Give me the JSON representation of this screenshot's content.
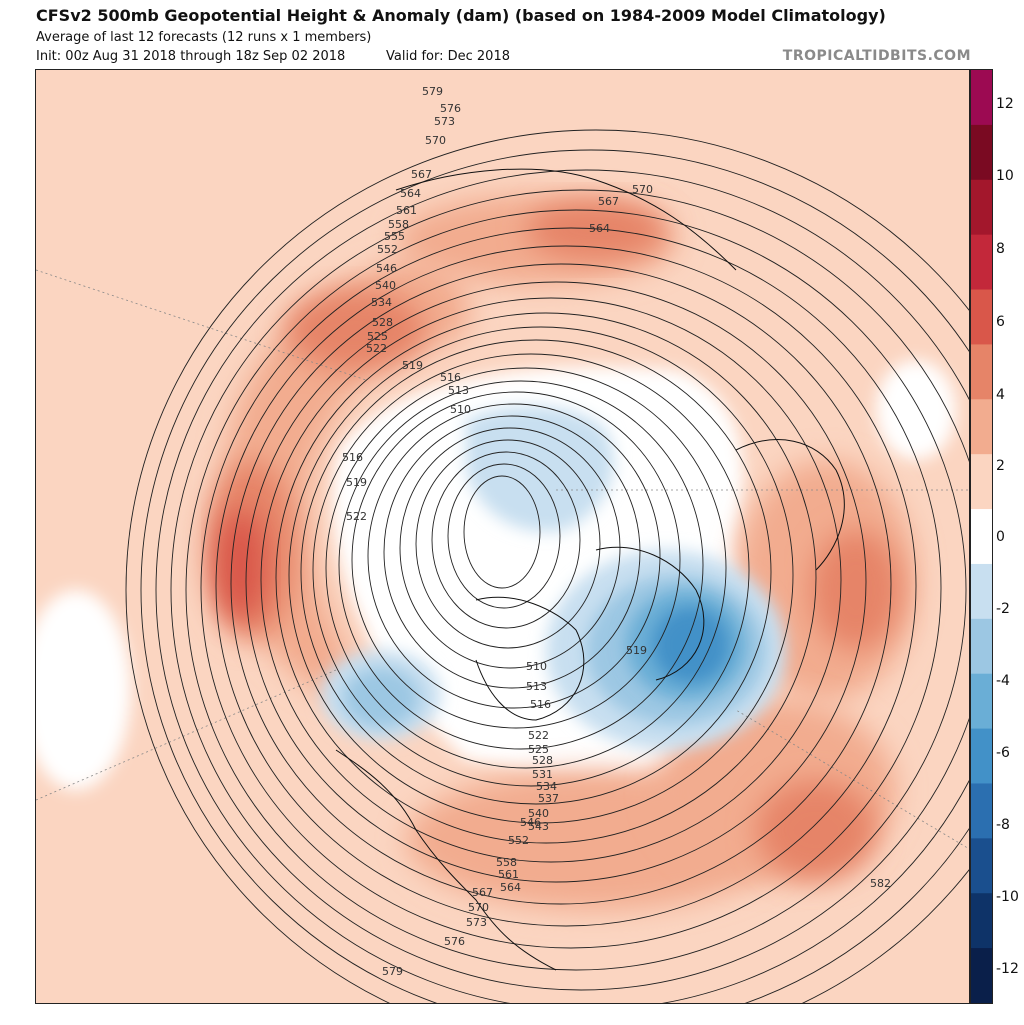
{
  "header": {
    "title": "CFSv2 500mb Geopotential Height & Anomaly (dam) (based on 1984-2009 Model Climatology)",
    "subtitle": "Average of last 12 forecasts (12 runs x 1 members)",
    "init": "Init: 00z Aug 31 2018 through 18z Sep 02 2018",
    "valid": "Valid for: Dec 2018",
    "brand": "TROPICALTIDBITS.COM"
  },
  "colorbar": {
    "ticks": [
      "12",
      "10",
      "8",
      "6",
      "4",
      "2",
      "0",
      "-2",
      "-4",
      "-6",
      "-8",
      "-10",
      "-12"
    ],
    "colors": [
      "#9c0a52",
      "#7a0a22",
      "#a3172c",
      "#c3283a",
      "#d9574a",
      "#e68468",
      "#f2ac8f",
      "#fbd5c1",
      "#ffffff",
      "#c8dff0",
      "#9cc7e3",
      "#6aaed6",
      "#4291c8",
      "#2b6fb0",
      "#1a4f8e",
      "#0e3368",
      "#0a1f4a"
    ]
  },
  "map": {
    "contour_labels": [
      "579",
      "576",
      "573",
      "570",
      "567",
      "564",
      "561",
      "558",
      "555",
      "552",
      "546",
      "540",
      "534",
      "528",
      "525",
      "522",
      "519",
      "516",
      "513",
      "510",
      "516",
      "519",
      "522",
      "582",
      "570",
      "567",
      "564",
      "519",
      "510",
      "513",
      "516",
      "522",
      "525",
      "528",
      "531",
      "534",
      "537",
      "540",
      "543",
      "546",
      "552",
      "558",
      "561",
      "564",
      "567",
      "570",
      "573",
      "576",
      "579"
    ]
  }
}
